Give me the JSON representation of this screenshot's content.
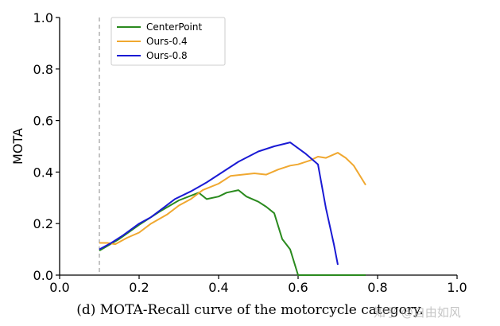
{
  "chart_data": {
    "type": "line",
    "title": "",
    "xlabel": "",
    "ylabel": "MOTA",
    "xlim": [
      0.0,
      1.0
    ],
    "ylim": [
      0.0,
      1.0
    ],
    "x_ticks": [
      "0.0",
      "0.2",
      "0.4",
      "0.6",
      "0.8",
      "1.0"
    ],
    "y_ticks": [
      "0.0",
      "0.2",
      "0.4",
      "0.6",
      "0.8",
      "1.0"
    ],
    "grid": false,
    "legend_position": "top-left",
    "reference_line": {
      "x": 0.1,
      "style": "dashed",
      "color": "#aaaaaa"
    },
    "series": [
      {
        "name": "CenterPoint",
        "color": "#2a8a1e",
        "points": [
          [
            0.1,
            0.095
          ],
          [
            0.15,
            0.14
          ],
          [
            0.2,
            0.195
          ],
          [
            0.25,
            0.245
          ],
          [
            0.3,
            0.29
          ],
          [
            0.35,
            0.32
          ],
          [
            0.37,
            0.295
          ],
          [
            0.4,
            0.305
          ],
          [
            0.42,
            0.32
          ],
          [
            0.45,
            0.33
          ],
          [
            0.47,
            0.305
          ],
          [
            0.5,
            0.285
          ],
          [
            0.52,
            0.265
          ],
          [
            0.54,
            0.24
          ],
          [
            0.56,
            0.14
          ],
          [
            0.58,
            0.1
          ],
          [
            0.6,
            0.0
          ],
          [
            0.7,
            0.0
          ],
          [
            0.77,
            0.0
          ]
        ]
      },
      {
        "name": "Ours-0.4",
        "color": "#f0a830",
        "points": [
          [
            0.1,
            0.125
          ],
          [
            0.12,
            0.125
          ],
          [
            0.14,
            0.12
          ],
          [
            0.17,
            0.145
          ],
          [
            0.2,
            0.165
          ],
          [
            0.23,
            0.2
          ],
          [
            0.27,
            0.235
          ],
          [
            0.3,
            0.27
          ],
          [
            0.33,
            0.295
          ],
          [
            0.36,
            0.33
          ],
          [
            0.4,
            0.355
          ],
          [
            0.43,
            0.385
          ],
          [
            0.46,
            0.39
          ],
          [
            0.49,
            0.395
          ],
          [
            0.52,
            0.39
          ],
          [
            0.55,
            0.41
          ],
          [
            0.58,
            0.425
          ],
          [
            0.6,
            0.43
          ],
          [
            0.63,
            0.445
          ],
          [
            0.65,
            0.46
          ],
          [
            0.67,
            0.455
          ],
          [
            0.7,
            0.475
          ],
          [
            0.72,
            0.455
          ],
          [
            0.74,
            0.425
          ],
          [
            0.77,
            0.35
          ]
        ]
      },
      {
        "name": "Ours-0.8",
        "color": "#1a1ad4",
        "points": [
          [
            0.1,
            0.1
          ],
          [
            0.13,
            0.125
          ],
          [
            0.16,
            0.155
          ],
          [
            0.2,
            0.2
          ],
          [
            0.23,
            0.225
          ],
          [
            0.26,
            0.26
          ],
          [
            0.29,
            0.295
          ],
          [
            0.33,
            0.325
          ],
          [
            0.37,
            0.36
          ],
          [
            0.41,
            0.4
          ],
          [
            0.45,
            0.44
          ],
          [
            0.5,
            0.48
          ],
          [
            0.54,
            0.5
          ],
          [
            0.58,
            0.515
          ],
          [
            0.62,
            0.47
          ],
          [
            0.65,
            0.43
          ],
          [
            0.67,
            0.26
          ],
          [
            0.69,
            0.12
          ],
          [
            0.7,
            0.04
          ]
        ]
      }
    ]
  },
  "caption": "(d) MOTA-Recall curve of the motorcycle category.",
  "watermark": "知乎 @自由如风"
}
